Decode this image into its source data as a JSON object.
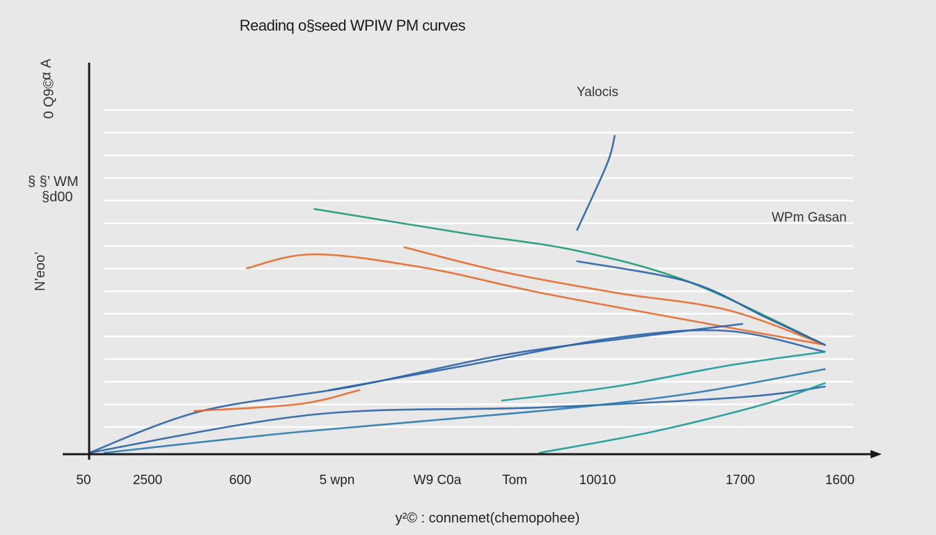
{
  "chart_data": {
    "type": "line",
    "title": "Readinq o§seed WPIW PM curves",
    "xlabel": "y²© : connemet(chemopohee)",
    "ylabel_parts": [
      "α A",
      "0 Q9©",
      "§ §’ WM",
      "§d00",
      "N’eoo’"
    ],
    "annotations": [
      "Yalocis",
      "WPm Gasan"
    ],
    "x_tick_labels": [
      "50",
      "2500",
      "600",
      "5 wpn",
      "W9 C0a",
      "Tom",
      "10010",
      "1700",
      "1600"
    ],
    "xlim": [
      0,
      100
    ],
    "ylim": [
      0,
      100
    ],
    "grid": true,
    "series": [
      {
        "color": "#1a9a7a",
        "values": [
          [
            30,
            70
          ],
          [
            50,
            63
          ],
          [
            65,
            58
          ],
          [
            80,
            49
          ],
          [
            98,
            31
          ]
        ]
      },
      {
        "color": "#e8692a",
        "values": [
          [
            21,
            53
          ],
          [
            30,
            57
          ],
          [
            45,
            53
          ],
          [
            60,
            46
          ],
          [
            80,
            38
          ],
          [
            98,
            31
          ]
        ]
      },
      {
        "color": "#e8692a",
        "values": [
          [
            42,
            59
          ],
          [
            55,
            52
          ],
          [
            70,
            46
          ],
          [
            85,
            41
          ],
          [
            98,
            31
          ]
        ]
      },
      {
        "color": "#2a62a8",
        "values": [
          [
            65,
            55
          ],
          [
            80,
            49
          ],
          [
            90,
            39
          ],
          [
            98,
            31
          ]
        ]
      },
      {
        "color": "#2a62a8",
        "values": [
          [
            0,
            0
          ],
          [
            15,
            12
          ],
          [
            35,
            19
          ],
          [
            55,
            28
          ],
          [
            72,
            33
          ],
          [
            87,
            37
          ]
        ]
      },
      {
        "color": "#2a62a8",
        "values": [
          [
            32,
            18
          ],
          [
            50,
            25
          ],
          [
            70,
            33
          ],
          [
            85,
            35
          ],
          [
            98,
            29
          ]
        ]
      },
      {
        "color": "#2a62a8",
        "values": [
          [
            0,
            0
          ],
          [
            30,
            11
          ],
          [
            60,
            13
          ],
          [
            87,
            16
          ],
          [
            98,
            19
          ]
        ]
      },
      {
        "color": "#2a7ab0",
        "values": [
          [
            2,
            0
          ],
          [
            28,
            6
          ],
          [
            60,
            12
          ],
          [
            80,
            17
          ],
          [
            98,
            24
          ]
        ]
      },
      {
        "color": "#1a9a9a",
        "values": [
          [
            55,
            15
          ],
          [
            70,
            19
          ],
          [
            85,
            25
          ],
          [
            98,
            29
          ]
        ]
      },
      {
        "color": "#1a9a9a",
        "values": [
          [
            60,
            0
          ],
          [
            75,
            6
          ],
          [
            90,
            14
          ],
          [
            98,
            20
          ]
        ]
      },
      {
        "color": "#e8692a",
        "values": [
          [
            14,
            12
          ],
          [
            28,
            14
          ],
          [
            36,
            18
          ]
        ]
      },
      {
        "color": "#2a62a8",
        "values": [
          [
            65,
            64
          ],
          [
            69,
            83
          ],
          [
            70,
            91
          ]
        ]
      }
    ]
  },
  "colors": {
    "background": "#e8e8e8",
    "axis": "#1a1a1a",
    "grid": "#ffffff"
  }
}
